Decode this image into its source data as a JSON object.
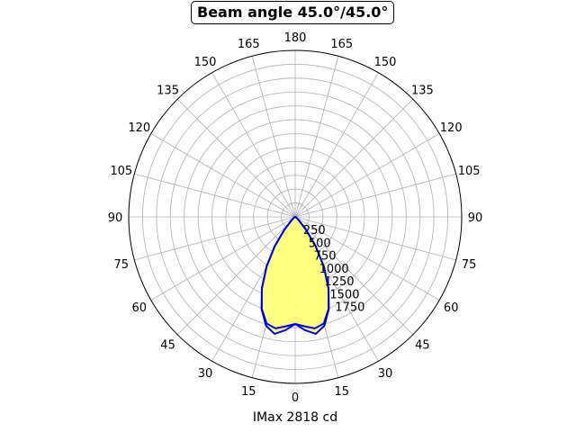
{
  "chart_data": {
    "type": "polar",
    "title": "Beam angle 45.0°/45.0°",
    "xlabel": "IMax 2818 cd",
    "angle_tick_labels": [
      {
        "angle": 0,
        "label": "0"
      },
      {
        "angle": 15,
        "label": "15"
      },
      {
        "angle": -15,
        "label": "15"
      },
      {
        "angle": 30,
        "label": "30"
      },
      {
        "angle": -30,
        "label": "30"
      },
      {
        "angle": 45,
        "label": "45"
      },
      {
        "angle": -45,
        "label": "45"
      },
      {
        "angle": 60,
        "label": "60"
      },
      {
        "angle": -60,
        "label": "60"
      },
      {
        "angle": 75,
        "label": "75"
      },
      {
        "angle": -75,
        "label": "75"
      },
      {
        "angle": 90,
        "label": "90"
      },
      {
        "angle": -90,
        "label": "90"
      },
      {
        "angle": 105,
        "label": "105"
      },
      {
        "angle": -105,
        "label": "105"
      },
      {
        "angle": 120,
        "label": "120"
      },
      {
        "angle": -120,
        "label": "120"
      },
      {
        "angle": 135,
        "label": "135"
      },
      {
        "angle": -135,
        "label": "135"
      },
      {
        "angle": 150,
        "label": "150"
      },
      {
        "angle": -150,
        "label": "150"
      },
      {
        "angle": 165,
        "label": "165"
      },
      {
        "angle": -165,
        "label": "165"
      },
      {
        "angle": 180,
        "label": "180"
      }
    ],
    "radial_ticks": [
      250,
      500,
      750,
      1000,
      1250,
      1500,
      1750
    ],
    "radial_grid_extra": [
      2000,
      2250,
      2500,
      2750
    ],
    "rlim": [
      0,
      3000
    ],
    "grid": true,
    "theta_zero": "bottom",
    "colors": {
      "outline": "#0000dd",
      "fill": "#ffff80"
    },
    "series": [
      {
        "angles": [
          -180,
          -90,
          -75,
          -60,
          -50,
          -45,
          -40,
          -35,
          -30,
          -25,
          -20,
          -15,
          -10,
          -5,
          0,
          5,
          10,
          15,
          20,
          25,
          30,
          35,
          40,
          45,
          50,
          60,
          75,
          90,
          180
        ],
        "values": [
          0,
          0,
          5,
          20,
          60,
          120,
          300,
          640,
          1030,
          1420,
          1770,
          2030,
          2140,
          2050,
          1930,
          2050,
          2140,
          2030,
          1770,
          1420,
          1030,
          640,
          300,
          120,
          60,
          20,
          5,
          0,
          0
        ]
      },
      {
        "angles": [
          -180,
          -90,
          -75,
          -60,
          -50,
          -45,
          -40,
          -35,
          -30,
          -25,
          -20,
          -15,
          -10,
          -5,
          0,
          5,
          10,
          15,
          20,
          25,
          30,
          35,
          40,
          45,
          50,
          60,
          75,
          90,
          180
        ],
        "values": [
          0,
          0,
          5,
          20,
          60,
          120,
          300,
          640,
          1030,
          1420,
          1760,
          1990,
          2040,
          1980,
          1930,
          1980,
          2040,
          1990,
          1760,
          1420,
          1030,
          640,
          300,
          120,
          60,
          20,
          5,
          0,
          0
        ]
      }
    ]
  }
}
